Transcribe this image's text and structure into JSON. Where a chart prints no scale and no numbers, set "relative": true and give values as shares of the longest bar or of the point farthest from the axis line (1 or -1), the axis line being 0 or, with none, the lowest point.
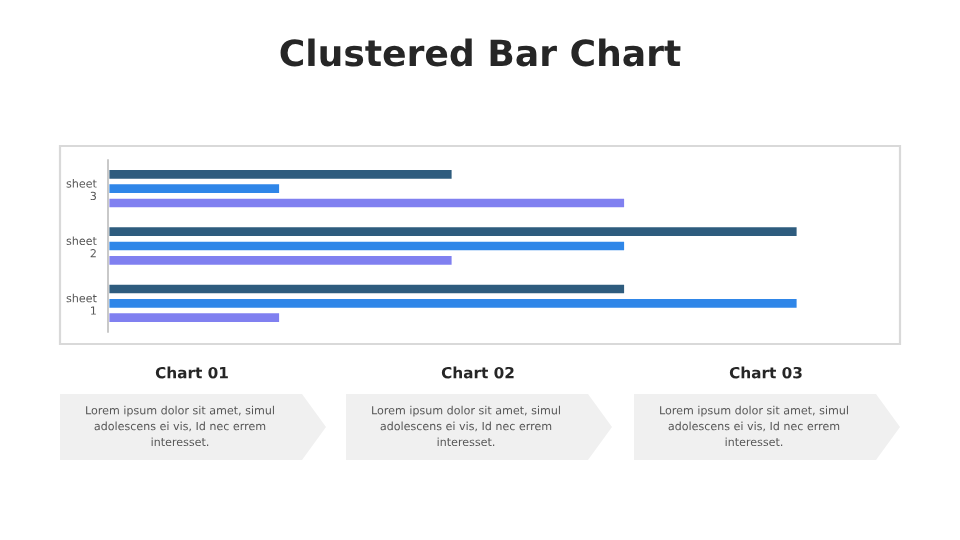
{
  "chart_data": {
    "type": "bar",
    "orientation": "horizontal",
    "relative": true,
    "title": "Clustered Bar Chart",
    "categories": [
      "sheet 3",
      "sheet 2",
      "sheet 1"
    ],
    "series": [
      {
        "color": "#2e5c7e",
        "values": [
          0.5,
          1.0,
          0.75
        ]
      },
      {
        "color": "#2f86e8",
        "values": [
          0.25,
          0.75,
          1.0
        ]
      },
      {
        "color": "#8080f0",
        "values": [
          0.75,
          0.5,
          0.25
        ]
      }
    ],
    "grid": false,
    "legend": false,
    "annotations": [
      "Chart 01",
      "Lorem ipsum dolor sit amet, simul adolescens ei vis, Id nec errem interesset.",
      "Chart 02",
      "Lorem ipsum dolor sit amet, simul adolescens ei vis, Id nec errem interesset.",
      "Chart 03",
      "Lorem ipsum dolor sit amet, simul adolescens ei vis, Id nec errem interesset."
    ]
  }
}
